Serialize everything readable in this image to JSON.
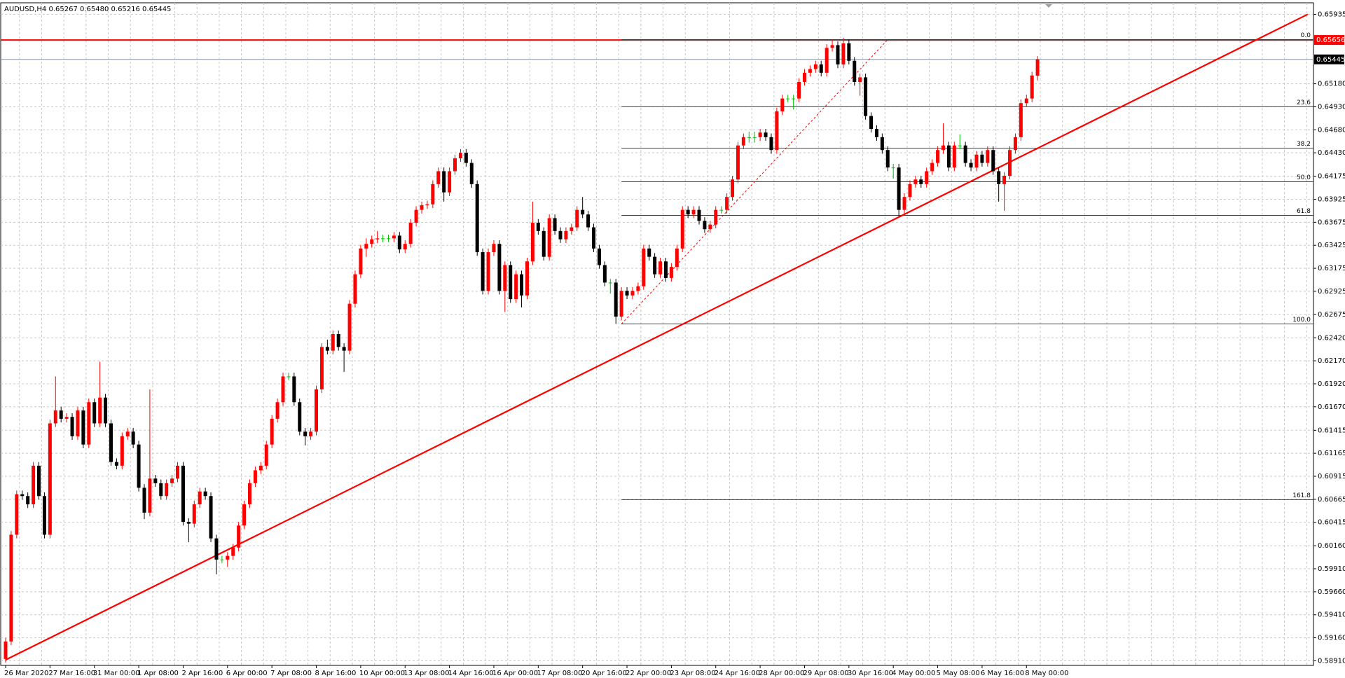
{
  "chart_data": {
    "type": "candlestick",
    "title": "AUDUSD,H4  0.65267 0.65480 0.65216 0.65445",
    "up_color": "#ff0000",
    "down_color": "#000000",
    "doji_color": "#00c000",
    "grid": true,
    "ylim": [
      0.5886,
      0.6606
    ],
    "yticks": [
      0.65935,
      {
        "value": 0.6518,
        "label": "0.65180"
      },
      {
        "value": 0.6493,
        "label": "0.64930"
      },
      {
        "value": 0.6468,
        "label": "0.64680"
      },
      {
        "value": 0.6443,
        "label": "0.64430"
      },
      0.64175,
      0.63925,
      0.63675,
      0.63425,
      0.63175,
      0.62925,
      0.62675,
      {
        "value": 0.6242,
        "label": "0.62420"
      },
      {
        "value": 0.6217,
        "label": "0.62170"
      },
      {
        "value": 0.6192,
        "label": "0.61920"
      },
      {
        "value": 0.6167,
        "label": "0.61670"
      },
      0.61415,
      0.61165,
      0.60915,
      0.60665,
      0.60415,
      {
        "value": 0.6016,
        "label": "0.60160"
      },
      {
        "value": 0.5991,
        "label": "0.59910"
      },
      {
        "value": 0.5966,
        "label": "0.59660"
      },
      {
        "value": 0.5941,
        "label": "0.59410"
      },
      {
        "value": 0.5916,
        "label": "0.59160"
      },
      {
        "value": 0.5891,
        "label": "0.58910"
      }
    ],
    "xticks": [
      {
        "value": 0,
        "label": "26 Mar 2020"
      },
      {
        "value": 8,
        "label": "27 Mar 16:00"
      },
      {
        "value": 16,
        "label": "31 Mar 00:00"
      },
      {
        "value": 24,
        "label": "1 Apr 08:00"
      },
      {
        "value": 32,
        "label": "2 Apr 16:00"
      },
      {
        "value": 40,
        "label": "6 Apr 00:00"
      },
      {
        "value": 48,
        "label": "7 Apr 08:00"
      },
      {
        "value": 56,
        "label": "8 Apr 16:00"
      },
      {
        "value": 64,
        "label": "10 Apr 00:00"
      },
      {
        "value": 72,
        "label": "13 Apr 08:00"
      },
      {
        "value": 80,
        "label": "14 Apr 16:00"
      },
      {
        "value": 88,
        "label": "16 Apr 00:00"
      },
      {
        "value": 96,
        "label": "17 Apr 08:00"
      },
      {
        "value": 104,
        "label": "20 Apr 16:00"
      },
      {
        "value": 112,
        "label": "22 Apr 00:00"
      },
      {
        "value": 120,
        "label": "23 Apr 08:00"
      },
      {
        "value": 128,
        "label": "24 Apr 16:00"
      },
      {
        "value": 136,
        "label": "28 Apr 00:00"
      },
      {
        "value": 144,
        "label": "29 Apr 08:00"
      },
      {
        "value": 152,
        "label": "30 Apr 16:00"
      },
      {
        "value": 160,
        "label": "4 May 00:00"
      },
      {
        "value": 168,
        "label": "5 May 08:00"
      },
      {
        "value": 176,
        "label": "6 May 16:00"
      },
      {
        "value": 184,
        "label": "8 May 00:00"
      }
    ],
    "open": [
      0.5893,
      0.5912,
      0.6028,
      0.6072,
      0.607,
      0.6061,
      0.6103,
      0.607,
      0.6028,
      0.6149,
      0.6163,
      0.6154,
      0.6156,
      0.6135,
      0.6163,
      0.6126,
      0.6172,
      0.6149,
      0.6177,
      0.6149,
      0.6107,
      0.6103,
      0.6135,
      0.614,
      0.6126,
      0.6079,
      0.6052,
      0.6089,
      0.6084,
      0.607,
      0.6084,
      0.6089,
      0.6103,
      0.6042,
      0.604,
      0.6061,
      0.6075,
      0.607,
      0.6024,
      0.6001,
      0.6001,
      0.6005,
      0.6014,
      0.6038,
      0.6061,
      0.6084,
      0.6098,
      0.6103,
      0.6126,
      0.6154,
      0.6172,
      0.62,
      0.62,
      0.6172,
      0.614,
      0.6135,
      0.614,
      0.6186,
      0.6232,
      0.6228,
      0.6246,
      0.6232,
      0.6228,
      0.6279,
      0.6311,
      0.6339,
      0.6344,
      0.6349,
      0.635,
      0.635,
      0.635,
      0.6353,
      0.6338,
      0.6344,
      0.6367,
      0.6381,
      0.6386,
      0.6387,
      0.6409,
      0.6423,
      0.64,
      0.6423,
      0.6437,
      0.6443,
      0.6432,
      0.6409,
      0.6335,
      0.6293,
      0.6335,
      0.6344,
      0.6293,
      0.6321,
      0.6284,
      0.6311,
      0.6288,
      0.6325,
      0.6367,
      0.6358,
      0.633,
      0.6372,
      0.6358,
      0.6349,
      0.6358,
      0.6362,
      0.6381,
      0.6376,
      0.6362,
      0.6339,
      0.6321,
      0.6302,
      0.6302,
      0.6265,
      0.6293,
      0.6288,
      0.6293,
      0.6298,
      0.6339,
      0.633,
      0.6311,
      0.6325,
      0.6307,
      0.6319,
      0.6339,
      0.6381,
      0.6376,
      0.6381,
      0.6369,
      0.636,
      0.6365,
      0.6381,
      0.6381,
      0.6395,
      0.6414,
      0.6451,
      0.646,
      0.646,
      0.646,
      0.6465,
      0.646,
      0.6446,
      0.6488,
      0.6502,
      0.6502,
      0.6502,
      0.652,
      0.653,
      0.6534,
      0.6539,
      0.653,
      0.6557,
      0.656,
      0.6539,
      0.6562,
      0.6543,
      0.652,
      0.6525,
      0.6483,
      0.6469,
      0.646,
      0.6446,
      0.6427,
      0.6427,
      0.6381,
      0.6395,
      0.6409,
      0.6414,
      0.6409,
      0.6423,
      0.6432,
      0.6446,
      0.6451,
      0.6427,
      0.6451,
      0.6451,
      0.6432,
      0.6427,
      0.6441,
      0.6432,
      0.6446,
      0.6423,
      0.6409,
      0.6418,
      0.6446,
      0.646,
      0.6497,
      0.6502,
      0.65267
    ],
    "high": [
      0.5916,
      0.6032,
      0.6076,
      0.6076,
      0.6074,
      0.6107,
      0.6107,
      0.6074,
      0.6153,
      0.62,
      0.6167,
      0.616,
      0.616,
      0.6167,
      0.6167,
      0.6176,
      0.6176,
      0.6216,
      0.6181,
      0.6153,
      0.6111,
      0.6139,
      0.6144,
      0.6144,
      0.613,
      0.6083,
      0.6186,
      0.6093,
      0.6088,
      0.6088,
      0.6093,
      0.6107,
      0.6107,
      0.6046,
      0.6065,
      0.6079,
      0.6079,
      0.6074,
      0.6028,
      0.6005,
      0.6009,
      0.6018,
      0.6042,
      0.6065,
      0.6088,
      0.6102,
      0.6107,
      0.613,
      0.6158,
      0.6176,
      0.6204,
      0.6204,
      0.6204,
      0.6176,
      0.6144,
      0.6144,
      0.619,
      0.6236,
      0.624,
      0.625,
      0.625,
      0.6236,
      0.6283,
      0.6315,
      0.6343,
      0.635,
      0.6353,
      0.6358,
      0.6354,
      0.6354,
      0.6357,
      0.6357,
      0.6348,
      0.6371,
      0.6385,
      0.639,
      0.6391,
      0.6413,
      0.6427,
      0.6427,
      0.6427,
      0.6441,
      0.6447,
      0.6447,
      0.6436,
      0.6413,
      0.6339,
      0.6339,
      0.6348,
      0.6348,
      0.6325,
      0.6325,
      0.6315,
      0.6315,
      0.6329,
      0.639,
      0.6371,
      0.6362,
      0.6376,
      0.6376,
      0.6362,
      0.6362,
      0.6366,
      0.6385,
      0.6395,
      0.638,
      0.6366,
      0.6343,
      0.6325,
      0.6306,
      0.6306,
      0.6297,
      0.6297,
      0.6297,
      0.6302,
      0.6343,
      0.6343,
      0.6334,
      0.6329,
      0.6329,
      0.6323,
      0.6343,
      0.6385,
      0.6385,
      0.6385,
      0.6385,
      0.6373,
      0.6369,
      0.6385,
      0.6385,
      0.6399,
      0.6418,
      0.6455,
      0.6464,
      0.6466,
      0.6466,
      0.6469,
      0.6469,
      0.6464,
      0.6492,
      0.6506,
      0.6506,
      0.6506,
      0.6524,
      0.6534,
      0.6538,
      0.6543,
      0.6543,
      0.6561,
      0.6566,
      0.6564,
      0.6568,
      0.6566,
      0.6547,
      0.6529,
      0.6529,
      0.6487,
      0.6473,
      0.6464,
      0.645,
      0.6431,
      0.6431,
      0.6399,
      0.6413,
      0.6418,
      0.6418,
      0.6427,
      0.6436,
      0.645,
      0.6475,
      0.6455,
      0.6455,
      0.6463,
      0.6455,
      0.6436,
      0.6445,
      0.6445,
      0.645,
      0.645,
      0.6427,
      0.6422,
      0.645,
      0.6464,
      0.6501,
      0.6506,
      0.6531,
      0.6548
    ],
    "low": [
      0.5889,
      0.5908,
      0.6024,
      0.6066,
      0.6057,
      0.6057,
      0.6066,
      0.6024,
      0.6024,
      0.6145,
      0.615,
      0.615,
      0.6131,
      0.6131,
      0.6122,
      0.6122,
      0.6145,
      0.6145,
      0.6145,
      0.6103,
      0.6099,
      0.6099,
      0.6131,
      0.6122,
      0.6075,
      0.6045,
      0.6048,
      0.608,
      0.6066,
      0.6066,
      0.608,
      0.6085,
      0.6038,
      0.602,
      0.6036,
      0.6057,
      0.6066,
      0.602,
      0.5985,
      0.5997,
      0.5993,
      0.6001,
      0.601,
      0.6034,
      0.6057,
      0.608,
      0.6094,
      0.6099,
      0.6122,
      0.615,
      0.6168,
      0.6196,
      0.6168,
      0.6136,
      0.6125,
      0.6131,
      0.6136,
      0.6182,
      0.6224,
      0.6224,
      0.6228,
      0.6205,
      0.6224,
      0.6275,
      0.6307,
      0.633,
      0.634,
      0.6345,
      0.6346,
      0.6346,
      0.6346,
      0.6334,
      0.6334,
      0.634,
      0.6363,
      0.6377,
      0.6382,
      0.6383,
      0.6405,
      0.639,
      0.6396,
      0.6419,
      0.6433,
      0.6428,
      0.6405,
      0.6331,
      0.6289,
      0.6289,
      0.6331,
      0.6289,
      0.627,
      0.628,
      0.628,
      0.6275,
      0.6284,
      0.6321,
      0.6354,
      0.6326,
      0.6326,
      0.6354,
      0.6345,
      0.6345,
      0.6354,
      0.6358,
      0.6372,
      0.6358,
      0.6335,
      0.6317,
      0.6298,
      0.629,
      0.6257,
      0.6261,
      0.6284,
      0.6284,
      0.6289,
      0.6294,
      0.6326,
      0.6307,
      0.6307,
      0.6303,
      0.6303,
      0.6315,
      0.6335,
      0.6372,
      0.6372,
      0.6365,
      0.6356,
      0.6356,
      0.6361,
      0.6377,
      0.6377,
      0.6391,
      0.641,
      0.6447,
      0.6454,
      0.6454,
      0.6456,
      0.6456,
      0.6442,
      0.6442,
      0.6484,
      0.6498,
      0.649,
      0.6498,
      0.6516,
      0.6526,
      0.653,
      0.6526,
      0.6526,
      0.6553,
      0.6535,
      0.6535,
      0.6539,
      0.6516,
      0.6505,
      0.6479,
      0.6465,
      0.6456,
      0.6442,
      0.6423,
      0.6415,
      0.6374,
      0.6377,
      0.6391,
      0.6405,
      0.6405,
      0.6405,
      0.6419,
      0.6428,
      0.6442,
      0.6423,
      0.6423,
      0.6447,
      0.6428,
      0.6423,
      0.6423,
      0.6428,
      0.6428,
      0.6419,
      0.639,
      0.638,
      0.6414,
      0.6442,
      0.6456,
      0.6493,
      0.6498,
      0.65216
    ],
    "close": [
      0.5912,
      0.6028,
      0.6072,
      0.607,
      0.6061,
      0.6103,
      0.607,
      0.6028,
      0.6149,
      0.6163,
      0.6154,
      0.6156,
      0.6135,
      0.6163,
      0.6126,
      0.6172,
      0.6149,
      0.6177,
      0.6149,
      0.6107,
      0.6103,
      0.6135,
      0.614,
      0.6126,
      0.6079,
      0.6052,
      0.6089,
      0.6084,
      0.607,
      0.6084,
      0.6089,
      0.6103,
      0.6042,
      0.604,
      0.6061,
      0.6075,
      0.607,
      0.6024,
      0.6001,
      0.6001,
      0.6005,
      0.6014,
      0.6038,
      0.6061,
      0.6084,
      0.6098,
      0.6103,
      0.6126,
      0.6154,
      0.6172,
      0.62,
      0.62,
      0.6172,
      0.614,
      0.6135,
      0.614,
      0.6186,
      0.6232,
      0.6228,
      0.6246,
      0.6232,
      0.6228,
      0.6279,
      0.6311,
      0.6339,
      0.6344,
      0.6349,
      0.635,
      0.635,
      0.635,
      0.6353,
      0.6338,
      0.6344,
      0.6367,
      0.6381,
      0.6386,
      0.6387,
      0.6409,
      0.6423,
      0.64,
      0.6423,
      0.6437,
      0.6443,
      0.6432,
      0.6409,
      0.6335,
      0.6293,
      0.6335,
      0.6344,
      0.6293,
      0.6321,
      0.6284,
      0.6311,
      0.6288,
      0.6325,
      0.6367,
      0.6358,
      0.633,
      0.6372,
      0.6358,
      0.6349,
      0.6358,
      0.6362,
      0.6381,
      0.6376,
      0.6362,
      0.6339,
      0.6321,
      0.6302,
      0.6302,
      0.6265,
      0.6293,
      0.6288,
      0.6293,
      0.6298,
      0.6339,
      0.633,
      0.6311,
      0.6325,
      0.6307,
      0.6319,
      0.6339,
      0.6381,
      0.6376,
      0.6381,
      0.6369,
      0.636,
      0.6365,
      0.6381,
      0.6381,
      0.6395,
      0.6414,
      0.6451,
      0.646,
      0.646,
      0.646,
      0.6465,
      0.646,
      0.6446,
      0.6488,
      0.6502,
      0.6502,
      0.6502,
      0.652,
      0.653,
      0.6534,
      0.6539,
      0.653,
      0.6557,
      0.656,
      0.6539,
      0.6562,
      0.6543,
      0.652,
      0.6525,
      0.6483,
      0.6469,
      0.646,
      0.6446,
      0.6427,
      0.6427,
      0.6381,
      0.6395,
      0.6409,
      0.6414,
      0.6409,
      0.6423,
      0.6432,
      0.6446,
      0.6451,
      0.6427,
      0.6451,
      0.6451,
      0.6432,
      0.6427,
      0.6441,
      0.6432,
      0.6446,
      0.6423,
      0.6409,
      0.6418,
      0.6446,
      0.646,
      0.6497,
      0.6502,
      0.6527,
      0.65445
    ],
    "price_lines": [
      {
        "value": 0.65656,
        "color": "#ff0000",
        "label_bg": "#ff0000"
      },
      {
        "value": 0.65445,
        "color": "#8090a0",
        "label_bg": "#000000"
      }
    ],
    "trendline": {
      "color": "#ff0000",
      "points": [
        [
          0,
          0.5892
        ],
        [
          234.7,
          0.65935
        ]
      ]
    },
    "fibonacci": {
      "color": "#ff0000",
      "line_color": "#404040",
      "from": [
        111,
        0.6257
      ],
      "to": [
        159,
        0.6566
      ],
      "levels": [
        {
          "value": 0,
          "label": "0.0"
        },
        23.6,
        38.2,
        {
          "value": 50,
          "label": "50.0"
        },
        61.8,
        {
          "value": 100,
          "label": "100.0"
        },
        161.8
      ]
    }
  }
}
